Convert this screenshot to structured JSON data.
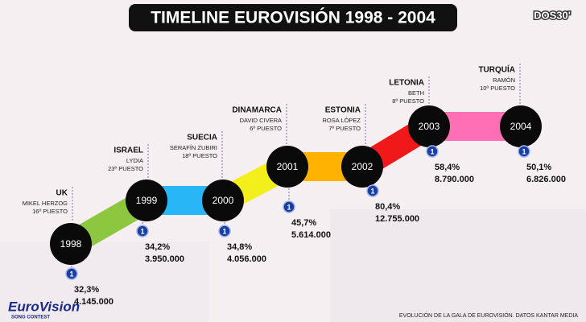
{
  "header": {
    "title": "TIMELINE EUROVISIÓN 1998 - 2004",
    "logo": "DOS30'"
  },
  "entries": [
    {
      "year": "1998",
      "country": "UK",
      "artist": "MIKEL HERZOG",
      "place": "16º PUESTO",
      "channel": "1",
      "share": "32,3%",
      "viewers": "4.145.000"
    },
    {
      "year": "1999",
      "country": "ISRAEL",
      "artist": "LYDIA",
      "place": "23º PUESTO",
      "channel": "1",
      "share": "34,2%",
      "viewers": "3.950.000"
    },
    {
      "year": "2000",
      "country": "SUECIA",
      "artist": "SERAFÍN ZUBIRI",
      "place": "18º PUESTO",
      "channel": "1",
      "share": "34,8%",
      "viewers": "4.056.000"
    },
    {
      "year": "2001",
      "country": "DINAMARCA",
      "artist": "DAVID CIVERA",
      "place": "6º PUESTO",
      "channel": "1",
      "share": "45,7%",
      "viewers": "5.614.000"
    },
    {
      "year": "2002",
      "country": "ESTONIA",
      "artist": "ROSA LÓPEZ",
      "place": "7º PUESTO",
      "channel": "1",
      "share": "80,4%",
      "viewers": "12.755.000"
    },
    {
      "year": "2003",
      "country": "LETONIA",
      "artist": "BETH",
      "place": "8º PUESTO",
      "channel": "1",
      "share": "58,4%",
      "viewers": "8.790.000"
    },
    {
      "year": "2004",
      "country": "TURQUÍA",
      "artist": "RAMÓN",
      "place": "10º PUESTO",
      "channel": "1",
      "share": "50,1%",
      "viewers": "6.826.000"
    }
  ],
  "footer": {
    "source": "EVOLUCIÓN DE LA GALA DE EUROVISIÓN. DATOS KANTAR MEDIA",
    "brand": "EuroVision",
    "brand_sub": "SONG CONTEST"
  }
}
